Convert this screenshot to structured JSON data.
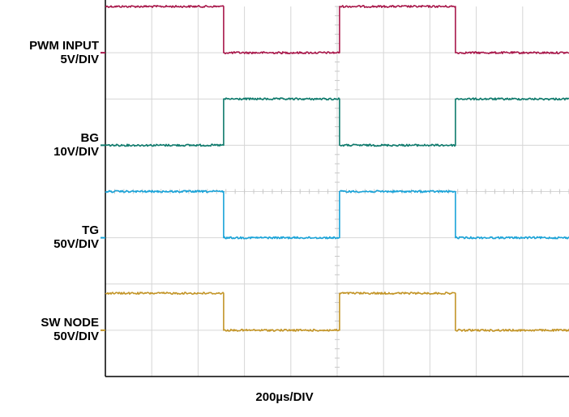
{
  "chart_data": {
    "type": "line",
    "title": "",
    "xlabel": "200µs/DIV",
    "ylabel": "",
    "grid": true,
    "x_divisions": 10,
    "y_divisions": 8,
    "x_range_us": [
      0,
      2000
    ],
    "channels": [
      {
        "name": "PWM INPUT",
        "scale": "5V/DIV",
        "color": "#A8174A",
        "ground_div_from_top": 1,
        "transitions_us": [
          0,
          510,
          1010,
          1510
        ],
        "levels": [
          "high",
          "low",
          "high",
          "low"
        ],
        "high_div": 1.0,
        "low_div": 0.0
      },
      {
        "name": "BG",
        "scale": "10V/DIV",
        "color": "#0E7A6C",
        "ground_div_from_top": 3,
        "transitions_us": [
          0,
          510,
          1010,
          1510
        ],
        "levels": [
          "low",
          "high",
          "low",
          "high"
        ],
        "high_div": 1.0,
        "low_div": 0.0
      },
      {
        "name": "TG",
        "scale": "50V/DIV",
        "color": "#1AA3D8",
        "ground_div_from_top": 5,
        "transitions_us": [
          0,
          510,
          1010,
          1510
        ],
        "levels": [
          "high",
          "low",
          "high",
          "low"
        ],
        "high_div": 1.0,
        "low_div": 0.0
      },
      {
        "name": "SW NODE",
        "scale": "50V/DIV",
        "color": "#C39528",
        "ground_div_from_top": 7,
        "transitions_us": [
          0,
          510,
          1010,
          1510
        ],
        "levels": [
          "high",
          "low",
          "high",
          "low"
        ],
        "high_div": 0.8,
        "low_div": 0.0
      }
    ]
  }
}
